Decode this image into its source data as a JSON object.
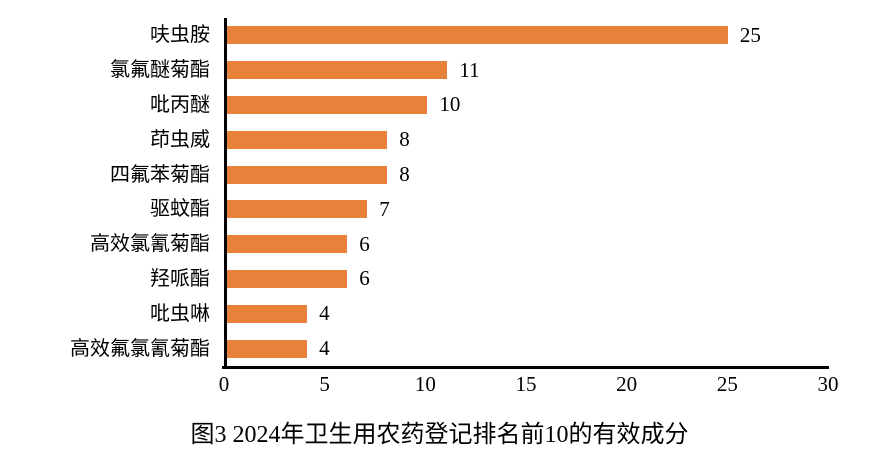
{
  "chart_data": {
    "type": "bar",
    "orientation": "horizontal",
    "title": "图3 2024年卫生用农药登记排名前10的有效成分",
    "categories": [
      "呋虫胺",
      "氯氟醚菊酯",
      "吡丙醚",
      "茚虫威",
      "四氟苯菊酯",
      "驱蚊酯",
      "高效氯氰菊酯",
      "羟哌酯",
      "吡虫啉",
      "高效氟氯氰菊酯"
    ],
    "values": [
      25,
      11,
      10,
      8,
      8,
      7,
      6,
      6,
      4,
      4
    ],
    "xlabel": "",
    "ylabel": "",
    "xlim": [
      0,
      30
    ],
    "x_ticks": [
      0,
      5,
      10,
      15,
      20,
      25,
      30
    ],
    "grid": false,
    "data_labels": true,
    "legend": "none",
    "bar_color": "#E8813A",
    "axis_color": "#000000",
    "text_color": "#000000",
    "background_color": "#FFFFFF"
  }
}
